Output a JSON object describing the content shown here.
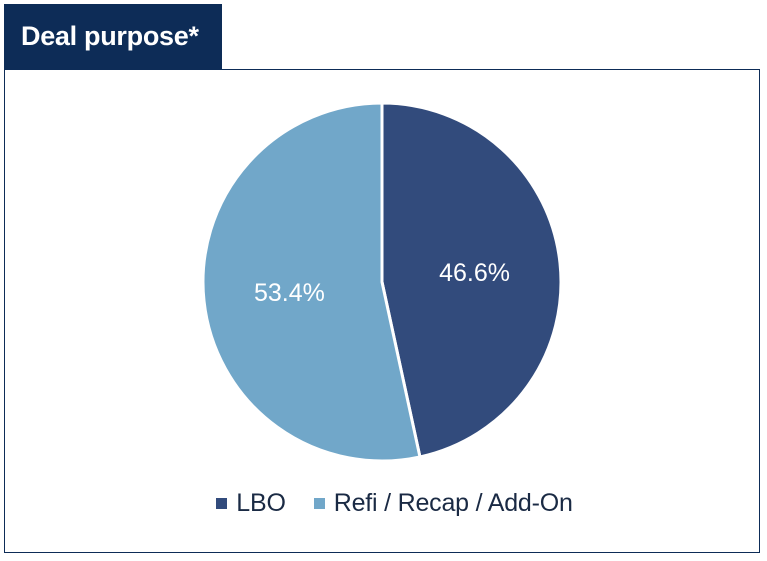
{
  "title": "Deal purpose*",
  "colors": {
    "header_bg": "#0d2c57",
    "border": "#0d2c57",
    "lbo": "#324b7c",
    "refi": "#71a7c9"
  },
  "chart_data": {
    "type": "pie",
    "title": "Deal purpose*",
    "start_angle_deg": 0,
    "direction": "clockwise",
    "legend_position": "bottom",
    "slices": [
      {
        "name": "LBO",
        "value": 46.6,
        "label": "46.6%",
        "color": "#324b7c"
      },
      {
        "name": "Refi / Recap / Add-On",
        "value": 53.4,
        "label": "53.4%",
        "color": "#71a7c9"
      }
    ]
  }
}
